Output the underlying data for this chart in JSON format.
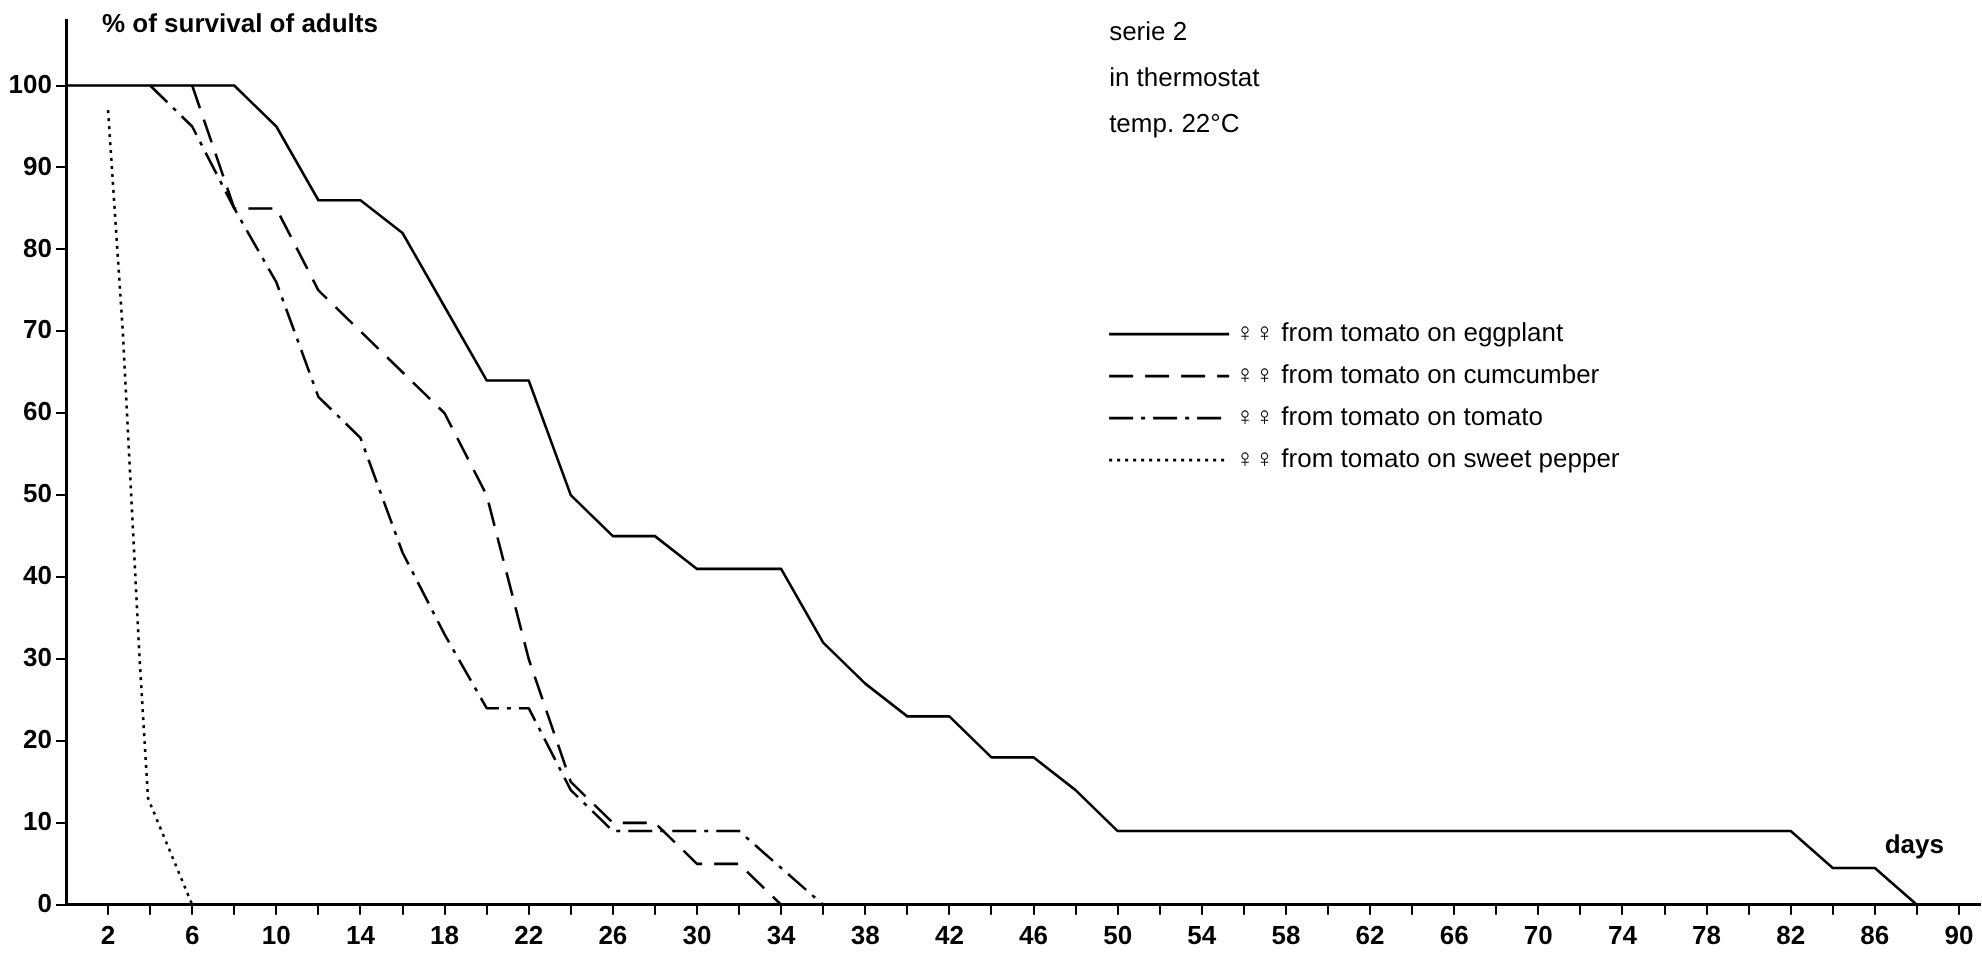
{
  "chart_data": {
    "type": "line",
    "ylabel": "% of survival of adults",
    "xlabel": "days",
    "annotations": [
      "serie 2",
      "in thermostat",
      "temp. 22°C"
    ],
    "xlim": [
      0,
      91
    ],
    "ylim": [
      0,
      108
    ],
    "xticks": [
      2,
      {
        "value": 4,
        "label": null
      },
      6,
      {
        "value": 8,
        "label": null
      },
      10,
      {
        "value": 12,
        "label": null
      },
      14,
      {
        "value": 16,
        "label": null
      },
      18,
      {
        "value": 20,
        "label": null
      },
      22,
      {
        "value": 24,
        "label": null
      },
      26,
      {
        "value": 28,
        "label": null
      },
      30,
      {
        "value": 32,
        "label": null
      },
      34,
      {
        "value": 36,
        "label": null
      },
      38,
      {
        "value": 40,
        "label": null
      },
      42,
      {
        "value": 44,
        "label": null
      },
      46,
      {
        "value": 48,
        "label": null
      },
      50,
      {
        "value": 52,
        "label": null
      },
      54,
      {
        "value": 56,
        "label": null
      },
      58,
      {
        "value": 60,
        "label": null
      },
      62,
      {
        "value": 64,
        "label": null
      },
      66,
      {
        "value": 68,
        "label": null
      },
      70,
      {
        "value": 72,
        "label": null
      },
      74,
      {
        "value": 76,
        "label": null
      },
      78,
      {
        "value": 80,
        "label": null
      },
      82,
      {
        "value": 84,
        "label": null
      },
      86,
      {
        "value": 88,
        "label": null
      },
      90
    ],
    "yticks": [
      0,
      10,
      20,
      30,
      40,
      50,
      60,
      70,
      80,
      90,
      100
    ],
    "legend": "top right",
    "marker": "none",
    "series": [
      {
        "name": "♀♀ from tomato on eggplant",
        "color": "#000000",
        "line_style": "solid",
        "x": [
          0,
          8,
          10,
          12,
          14,
          16,
          18,
          20,
          22,
          24,
          26,
          28,
          30,
          32,
          34,
          36,
          38,
          40,
          42,
          44,
          46,
          48,
          50,
          82,
          84,
          86,
          88
        ],
        "values": [
          100,
          100,
          95,
          86,
          86,
          82,
          73,
          64,
          64,
          50,
          45,
          45,
          41,
          41,
          41,
          32,
          27,
          23,
          23,
          18,
          18,
          14,
          9,
          9,
          4.5,
          4.5,
          0
        ]
      },
      {
        "name": "♀♀ from tomato on cumcumber",
        "color": "#000000",
        "line_style": "dashed",
        "x": [
          6,
          8,
          10,
          12,
          14,
          16,
          18,
          20,
          22,
          24,
          26,
          28,
          30,
          32,
          34,
          36
        ],
        "values": [
          100,
          85,
          85,
          75,
          70,
          65,
          60,
          50,
          30,
          15,
          10,
          10,
          5,
          5,
          0,
          0
        ]
      },
      {
        "name": "♀♀ from tomato on tomato",
        "color": "#000000",
        "line_style": "dashdot",
        "x": [
          4,
          6,
          8,
          10,
          12,
          14,
          16,
          18,
          20,
          22,
          24,
          26,
          28,
          32,
          36
        ],
        "values": [
          100,
          95,
          85,
          76,
          62,
          57,
          43,
          33,
          24,
          24,
          14,
          9,
          9,
          9,
          0
        ]
      },
      {
        "name": "♀♀ from tomato on sweet pepper",
        "color": "#000000",
        "line_style": "dotted",
        "x": [
          2,
          2.7,
          3.1,
          3.5,
          3.9,
          6
        ],
        "values": [
          97,
          70,
          50,
          30,
          13,
          0
        ]
      }
    ]
  }
}
